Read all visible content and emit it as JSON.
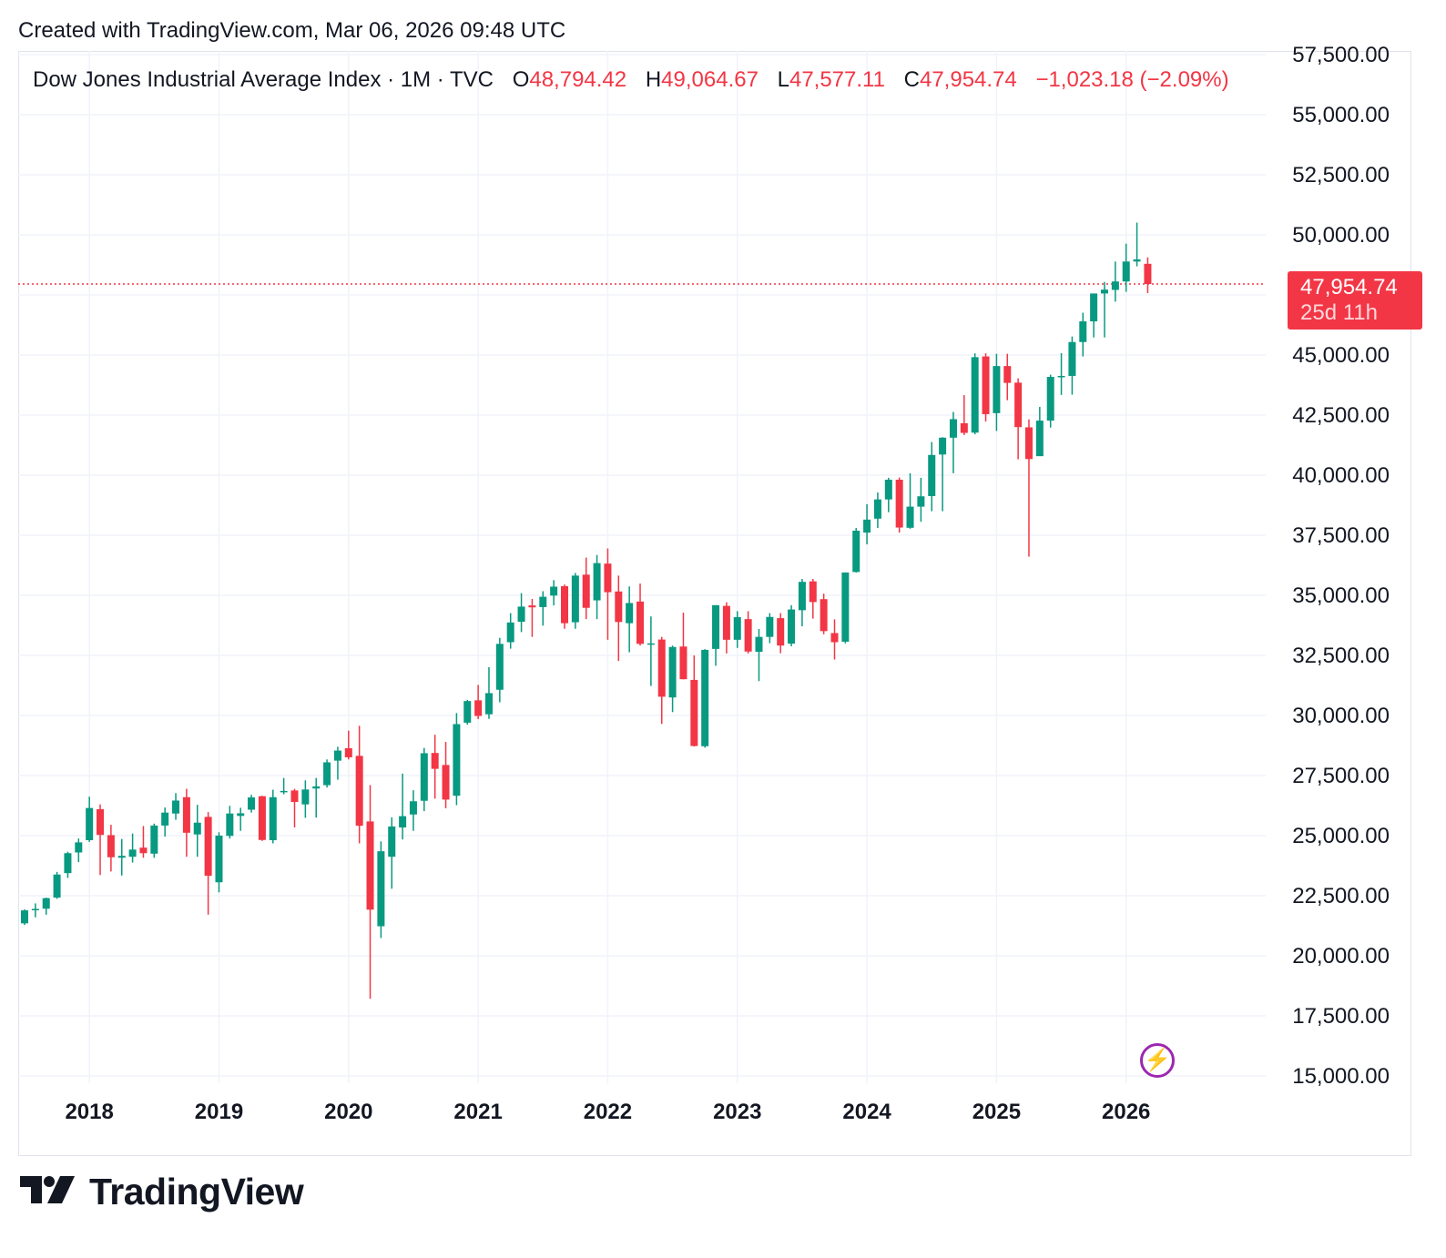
{
  "header": {
    "created_text": "Created with TradingView.com, Mar 06, 2026 09:48 UTC"
  },
  "legend": {
    "symbol": "Dow Jones Industrial Average Index · 1M · TVC",
    "o_label": "O",
    "o_value": "48,794.42",
    "h_label": "H",
    "h_value": "49,064.67",
    "l_label": "L",
    "l_value": "47,577.11",
    "c_label": "C",
    "c_value": "47,954.74",
    "change": "−1,023.18 (−2.09%)"
  },
  "price_tag": {
    "price": "47,954.74",
    "countdown": "25d 11h"
  },
  "logo": {
    "name": "TradingView"
  },
  "colors": {
    "up": "#089981",
    "down": "#f23645",
    "grid": "#f0f3fa",
    "text": "#131722",
    "accent": "#9c27b0"
  },
  "icons": {
    "bolt": "lightning-icon",
    "logo": "tradingview-logo-icon"
  },
  "chart_data": {
    "type": "candlestick",
    "interval": "1M",
    "last_price": 47954.74,
    "ylim": [
      15000,
      57500
    ],
    "x_ticks": [
      "2018",
      "2019",
      "2020",
      "2021",
      "2022",
      "2023",
      "2024",
      "2025",
      "2026"
    ],
    "y_ticks": [
      "15,000.00",
      "17,500.00",
      "20,000.00",
      "22,500.00",
      "25,000.00",
      "27,500.00",
      "30,000.00",
      "32,500.00",
      "35,000.00",
      "37,500.00",
      "40,000.00",
      "42,500.00",
      "45,000.00",
      "47,500.00",
      "50,000.00",
      "52,500.00",
      "55,000.00",
      "57,500.00"
    ],
    "candles": [
      {
        "t": "2017-07",
        "o": 21350,
        "h": 21930,
        "l": 21280,
        "c": 21890
      },
      {
        "t": "2017-08",
        "o": 21900,
        "h": 22180,
        "l": 21600,
        "c": 21950
      },
      {
        "t": "2017-09",
        "o": 21960,
        "h": 22420,
        "l": 21710,
        "c": 22400
      },
      {
        "t": "2017-10",
        "o": 22420,
        "h": 23490,
        "l": 22370,
        "c": 23380
      },
      {
        "t": "2017-11",
        "o": 23440,
        "h": 24330,
        "l": 23240,
        "c": 24270
      },
      {
        "t": "2017-12",
        "o": 24300,
        "h": 24880,
        "l": 23900,
        "c": 24720
      },
      {
        "t": "2018-01",
        "o": 24810,
        "h": 26620,
        "l": 24740,
        "c": 26150
      },
      {
        "t": "2018-02",
        "o": 26100,
        "h": 26300,
        "l": 23360,
        "c": 25030
      },
      {
        "t": "2018-03",
        "o": 25020,
        "h": 25450,
        "l": 23510,
        "c": 24100
      },
      {
        "t": "2018-04",
        "o": 24080,
        "h": 24860,
        "l": 23340,
        "c": 24160
      },
      {
        "t": "2018-05",
        "o": 24120,
        "h": 25090,
        "l": 23880,
        "c": 24420
      },
      {
        "t": "2018-06",
        "o": 24500,
        "h": 25400,
        "l": 24080,
        "c": 24270
      },
      {
        "t": "2018-07",
        "o": 24250,
        "h": 25500,
        "l": 24080,
        "c": 25420
      },
      {
        "t": "2018-08",
        "o": 25420,
        "h": 26170,
        "l": 24960,
        "c": 25960
      },
      {
        "t": "2018-09",
        "o": 25920,
        "h": 26770,
        "l": 25660,
        "c": 26460
      },
      {
        "t": "2018-10",
        "o": 26600,
        "h": 26950,
        "l": 24120,
        "c": 25120
      },
      {
        "t": "2018-11",
        "o": 25050,
        "h": 26280,
        "l": 24120,
        "c": 25540
      },
      {
        "t": "2018-12",
        "o": 25780,
        "h": 25980,
        "l": 21710,
        "c": 23330
      },
      {
        "t": "2019-01",
        "o": 23060,
        "h": 25140,
        "l": 22640,
        "c": 25000
      },
      {
        "t": "2019-02",
        "o": 24990,
        "h": 26240,
        "l": 24880,
        "c": 25920
      },
      {
        "t": "2019-03",
        "o": 25820,
        "h": 26160,
        "l": 25200,
        "c": 25930
      },
      {
        "t": "2019-04",
        "o": 26080,
        "h": 26700,
        "l": 25960,
        "c": 26590
      },
      {
        "t": "2019-05",
        "o": 26640,
        "h": 26660,
        "l": 24780,
        "c": 24820
      },
      {
        "t": "2019-06",
        "o": 24810,
        "h": 26910,
        "l": 24680,
        "c": 26600
      },
      {
        "t": "2019-07",
        "o": 26820,
        "h": 27400,
        "l": 26720,
        "c": 26860
      },
      {
        "t": "2019-08",
        "o": 26880,
        "h": 26950,
        "l": 25340,
        "c": 26400
      },
      {
        "t": "2019-09",
        "o": 26300,
        "h": 27300,
        "l": 25740,
        "c": 26920
      },
      {
        "t": "2019-10",
        "o": 26960,
        "h": 27400,
        "l": 25750,
        "c": 27050
      },
      {
        "t": "2019-11",
        "o": 27100,
        "h": 28170,
        "l": 27000,
        "c": 28050
      },
      {
        "t": "2019-12",
        "o": 28120,
        "h": 28700,
        "l": 27330,
        "c": 28540
      },
      {
        "t": "2020-01",
        "o": 28640,
        "h": 29370,
        "l": 28170,
        "c": 28260
      },
      {
        "t": "2020-02",
        "o": 28320,
        "h": 29570,
        "l": 24680,
        "c": 25410
      },
      {
        "t": "2020-03",
        "o": 25590,
        "h": 27100,
        "l": 18210,
        "c": 21920
      },
      {
        "t": "2020-04",
        "o": 21230,
        "h": 24760,
        "l": 20740,
        "c": 24350
      },
      {
        "t": "2020-05",
        "o": 24120,
        "h": 25760,
        "l": 22790,
        "c": 25380
      },
      {
        "t": "2020-06",
        "o": 25340,
        "h": 27580,
        "l": 24840,
        "c": 25810
      },
      {
        "t": "2020-07",
        "o": 25880,
        "h": 26890,
        "l": 25200,
        "c": 26430
      },
      {
        "t": "2020-08",
        "o": 26450,
        "h": 28650,
        "l": 26020,
        "c": 28430
      },
      {
        "t": "2020-09",
        "o": 28440,
        "h": 29200,
        "l": 26540,
        "c": 27780
      },
      {
        "t": "2020-10",
        "o": 27940,
        "h": 28900,
        "l": 26140,
        "c": 26500
      },
      {
        "t": "2020-11",
        "o": 26660,
        "h": 30100,
        "l": 26270,
        "c": 29640
      },
      {
        "t": "2020-12",
        "o": 29700,
        "h": 30650,
        "l": 29620,
        "c": 30600
      },
      {
        "t": "2021-01",
        "o": 30630,
        "h": 31270,
        "l": 29850,
        "c": 29980
      },
      {
        "t": "2021-02",
        "o": 30050,
        "h": 32010,
        "l": 29860,
        "c": 30930
      },
      {
        "t": "2021-03",
        "o": 31070,
        "h": 33230,
        "l": 30550,
        "c": 32980
      },
      {
        "t": "2021-04",
        "o": 33050,
        "h": 34260,
        "l": 32780,
        "c": 33870
      },
      {
        "t": "2021-05",
        "o": 33900,
        "h": 35090,
        "l": 33470,
        "c": 34530
      },
      {
        "t": "2021-06",
        "o": 34580,
        "h": 34850,
        "l": 33270,
        "c": 34500
      },
      {
        "t": "2021-07",
        "o": 34510,
        "h": 35170,
        "l": 33740,
        "c": 34940
      },
      {
        "t": "2021-08",
        "o": 34990,
        "h": 35630,
        "l": 34580,
        "c": 35360
      },
      {
        "t": "2021-09",
        "o": 35380,
        "h": 35450,
        "l": 33610,
        "c": 33840
      },
      {
        "t": "2021-10",
        "o": 33880,
        "h": 35930,
        "l": 33610,
        "c": 35820
      },
      {
        "t": "2021-11",
        "o": 35860,
        "h": 36570,
        "l": 34010,
        "c": 34480
      },
      {
        "t": "2021-12",
        "o": 34790,
        "h": 36680,
        "l": 34010,
        "c": 36340
      },
      {
        "t": "2022-01",
        "o": 36320,
        "h": 36950,
        "l": 33150,
        "c": 35130
      },
      {
        "t": "2022-02",
        "o": 35160,
        "h": 35820,
        "l": 32270,
        "c": 33890
      },
      {
        "t": "2022-03",
        "o": 33840,
        "h": 35370,
        "l": 32630,
        "c": 34680
      },
      {
        "t": "2022-04",
        "o": 34740,
        "h": 35490,
        "l": 32910,
        "c": 32980
      },
      {
        "t": "2022-05",
        "o": 32990,
        "h": 34120,
        "l": 31230,
        "c": 33000
      },
      {
        "t": "2022-06",
        "o": 33160,
        "h": 33270,
        "l": 29650,
        "c": 30780
      },
      {
        "t": "2022-07",
        "o": 30750,
        "h": 32910,
        "l": 30140,
        "c": 32850
      },
      {
        "t": "2022-08",
        "o": 32870,
        "h": 34280,
        "l": 31500,
        "c": 31510
      },
      {
        "t": "2022-09",
        "o": 31480,
        "h": 32500,
        "l": 28710,
        "c": 28730
      },
      {
        "t": "2022-10",
        "o": 28720,
        "h": 32760,
        "l": 28660,
        "c": 32730
      },
      {
        "t": "2022-11",
        "o": 32770,
        "h": 34590,
        "l": 32070,
        "c": 34590
      },
      {
        "t": "2022-12",
        "o": 34560,
        "h": 34710,
        "l": 32580,
        "c": 33150
      },
      {
        "t": "2023-01",
        "o": 33150,
        "h": 34340,
        "l": 32810,
        "c": 34090
      },
      {
        "t": "2023-02",
        "o": 34010,
        "h": 34340,
        "l": 32580,
        "c": 32660
      },
      {
        "t": "2023-03",
        "o": 32650,
        "h": 33600,
        "l": 31430,
        "c": 33270
      },
      {
        "t": "2023-04",
        "o": 33270,
        "h": 34260,
        "l": 33010,
        "c": 34100
      },
      {
        "t": "2023-05",
        "o": 34050,
        "h": 34260,
        "l": 32590,
        "c": 32910
      },
      {
        "t": "2023-06",
        "o": 32990,
        "h": 34590,
        "l": 32880,
        "c": 34410
      },
      {
        "t": "2023-07",
        "o": 34380,
        "h": 35680,
        "l": 33710,
        "c": 35560
      },
      {
        "t": "2023-08",
        "o": 35580,
        "h": 35680,
        "l": 34030,
        "c": 34720
      },
      {
        "t": "2023-09",
        "o": 34840,
        "h": 35070,
        "l": 33380,
        "c": 33510
      },
      {
        "t": "2023-10",
        "o": 33430,
        "h": 34000,
        "l": 32330,
        "c": 33050
      },
      {
        "t": "2023-11",
        "o": 33070,
        "h": 35950,
        "l": 33000,
        "c": 35950
      },
      {
        "t": "2023-12",
        "o": 35970,
        "h": 37800,
        "l": 35950,
        "c": 37690
      },
      {
        "t": "2024-01",
        "o": 37610,
        "h": 38790,
        "l": 37120,
        "c": 38150
      },
      {
        "t": "2024-02",
        "o": 38190,
        "h": 39280,
        "l": 37800,
        "c": 38990
      },
      {
        "t": "2024-03",
        "o": 38990,
        "h": 39890,
        "l": 38460,
        "c": 39810
      },
      {
        "t": "2024-04",
        "o": 39810,
        "h": 39900,
        "l": 37610,
        "c": 37820
      },
      {
        "t": "2024-05",
        "o": 37810,
        "h": 40080,
        "l": 37770,
        "c": 38690
      },
      {
        "t": "2024-06",
        "o": 38690,
        "h": 39890,
        "l": 38060,
        "c": 39120
      },
      {
        "t": "2024-07",
        "o": 39130,
        "h": 41380,
        "l": 38500,
        "c": 40840
      },
      {
        "t": "2024-08",
        "o": 40860,
        "h": 41580,
        "l": 38500,
        "c": 41560
      },
      {
        "t": "2024-09",
        "o": 41560,
        "h": 42630,
        "l": 40080,
        "c": 42330
      },
      {
        "t": "2024-10",
        "o": 42160,
        "h": 43330,
        "l": 41670,
        "c": 41760
      },
      {
        "t": "2024-11",
        "o": 41770,
        "h": 45070,
        "l": 41700,
        "c": 44910
      },
      {
        "t": "2024-12",
        "o": 44940,
        "h": 45070,
        "l": 42230,
        "c": 42540
      },
      {
        "t": "2025-01",
        "o": 42580,
        "h": 45050,
        "l": 41840,
        "c": 44540
      },
      {
        "t": "2025-02",
        "o": 44540,
        "h": 45050,
        "l": 43120,
        "c": 43840
      },
      {
        "t": "2025-03",
        "o": 43850,
        "h": 44030,
        "l": 40660,
        "c": 42000
      },
      {
        "t": "2025-04",
        "o": 41990,
        "h": 42320,
        "l": 36610,
        "c": 40670
      },
      {
        "t": "2025-05",
        "o": 40790,
        "h": 42840,
        "l": 40850,
        "c": 42270
      },
      {
        "t": "2025-06",
        "o": 42270,
        "h": 44180,
        "l": 41980,
        "c": 44090
      },
      {
        "t": "2025-07",
        "o": 44090,
        "h": 45080,
        "l": 43340,
        "c": 44130
      },
      {
        "t": "2025-08",
        "o": 44130,
        "h": 45770,
        "l": 43350,
        "c": 45540
      },
      {
        "t": "2025-09",
        "o": 45540,
        "h": 46760,
        "l": 44940,
        "c": 46400
      },
      {
        "t": "2025-10",
        "o": 46400,
        "h": 47560,
        "l": 45730,
        "c": 47560
      },
      {
        "t": "2025-11",
        "o": 47560,
        "h": 48040,
        "l": 45730,
        "c": 47720
      },
      {
        "t": "2025-12",
        "o": 47710,
        "h": 48890,
        "l": 47220,
        "c": 48060
      },
      {
        "t": "2026-01",
        "o": 48060,
        "h": 49630,
        "l": 47630,
        "c": 48890
      },
      {
        "t": "2026-02",
        "o": 48890,
        "h": 50510,
        "l": 48690,
        "c": 48978
      },
      {
        "t": "2026-03",
        "o": 48794.42,
        "h": 49064.67,
        "l": 47577.11,
        "c": 47954.74
      }
    ]
  }
}
